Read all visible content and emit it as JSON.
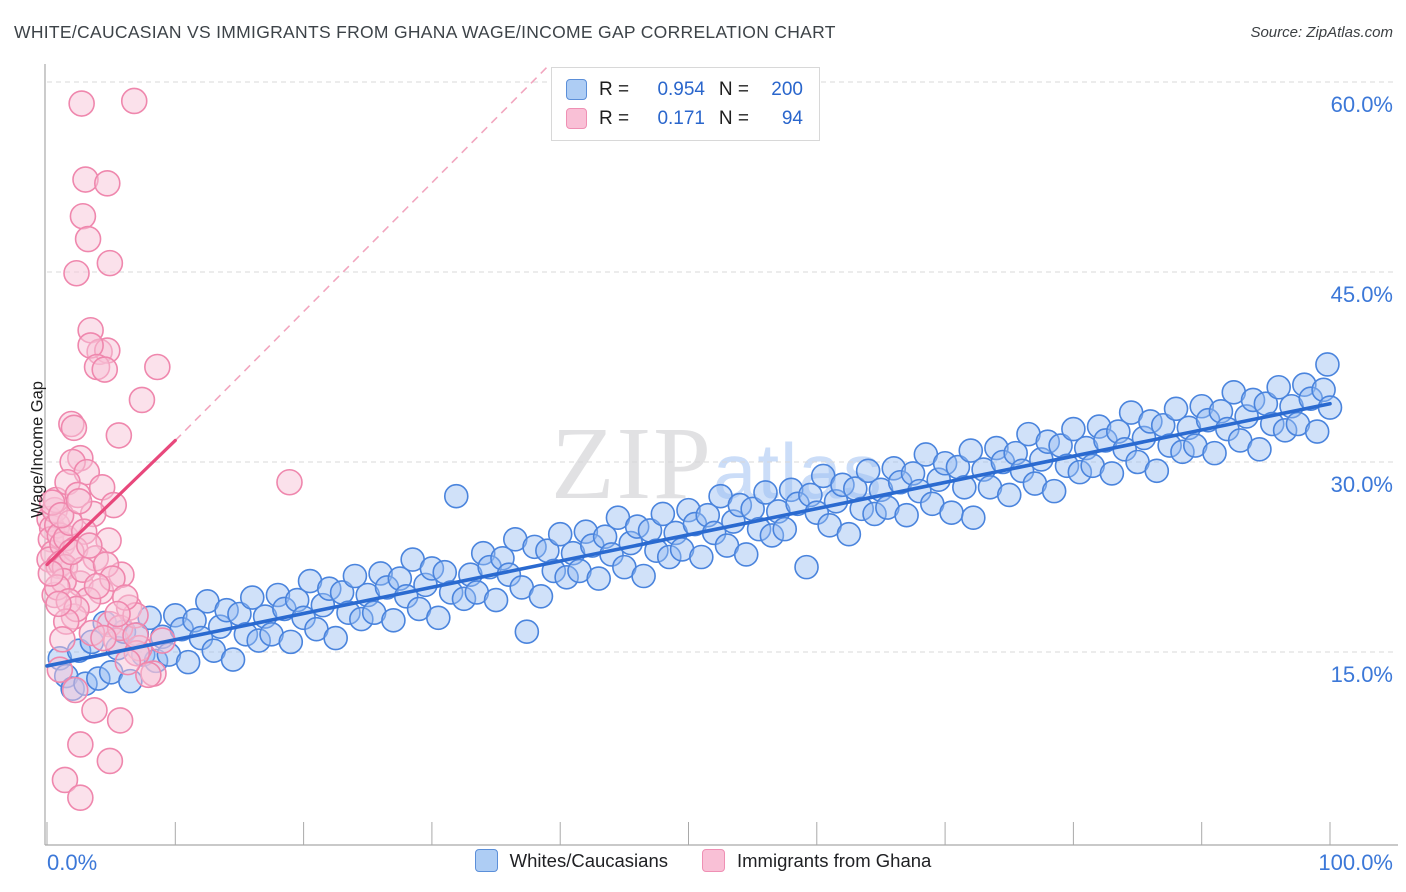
{
  "header": {
    "title": "WHITE/CAUCASIAN VS IMMIGRANTS FROM GHANA WAGE/INCOME GAP CORRELATION CHART",
    "source": "Source: ZipAtlas.com"
  },
  "watermark": {
    "zip": "ZIP",
    "atlas": "atlas"
  },
  "axes": {
    "y_label": "Wage/Income Gap",
    "y_ticks": [
      {
        "value": 60,
        "label": "60.0%"
      },
      {
        "value": 45,
        "label": "45.0%"
      },
      {
        "value": 30,
        "label": "30.0%"
      },
      {
        "value": 15,
        "label": "15.0%"
      }
    ],
    "x_left_label": "0.0%",
    "x_right_label": "100.0%",
    "x_tick_percents": [
      0,
      10,
      20,
      30,
      40,
      50,
      60,
      70,
      80,
      90,
      100
    ]
  },
  "legend_box": {
    "rows": [
      {
        "r_eq": "R =",
        "r_val": "0.954",
        "n_eq": "N =",
        "n_val": "200",
        "swatch_fill": "#aecdf4",
        "swatch_border": "#5b8fd9"
      },
      {
        "r_eq": "R =",
        "r_val": "0.171",
        "n_eq": "N =",
        "n_val": "94",
        "swatch_fill": "#f9c0d6",
        "swatch_border": "#ef90b4"
      }
    ]
  },
  "colors": {
    "blue_stroke": "#4a84dd",
    "blue_fill": "rgba(150,189,242,0.45)",
    "pink_stroke": "#ef87ad",
    "pink_fill": "rgba(247,195,215,0.5)",
    "blue_line": "#2a6ad0",
    "pink_line": "#e8487c",
    "pink_dash": "#f2a6bf",
    "grid": "#d8d8d8",
    "axis": "#a9a9a9",
    "tick_label_blue": "#3c78d8"
  },
  "chart_data": {
    "type": "scatter",
    "title": "WHITE/CAUCASIAN VS IMMIGRANTS FROM GHANA WAGE/INCOME GAP CORRELATION CHART",
    "xlabel": "",
    "ylabel": "Wage/Income Gap",
    "xlim": [
      0,
      100
    ],
    "ylim": [
      0,
      62
    ],
    "grid": "horizontal-dashed",
    "legend_position": "bottom-center",
    "series": [
      {
        "name": "Whites/Caucasians",
        "R": 0.954,
        "N": 200,
        "radius": 11.5,
        "trend": {
          "x1": 0,
          "y1": 13.9,
          "x2": 100,
          "y2": 34.6
        },
        "points": [
          [
            1.0,
            14.5
          ],
          [
            1.5,
            13.1
          ],
          [
            2.0,
            12.1
          ],
          [
            2.5,
            15.1
          ],
          [
            3.0,
            12.5
          ],
          [
            3.5,
            15.8
          ],
          [
            4.0,
            12.9
          ],
          [
            4.5,
            17.3
          ],
          [
            5.0,
            13.4
          ],
          [
            5.5,
            15.3
          ],
          [
            6.0,
            16.6
          ],
          [
            6.5,
            12.7
          ],
          [
            7.0,
            16.4
          ],
          [
            7.5,
            14.8
          ],
          [
            8.0,
            17.7
          ],
          [
            8.5,
            14.3
          ],
          [
            9.0,
            16.2
          ],
          [
            9.5,
            14.8
          ],
          [
            10.0,
            17.9
          ],
          [
            10.5,
            16.8
          ],
          [
            11.0,
            14.2
          ],
          [
            11.5,
            17.5
          ],
          [
            12.0,
            16.1
          ],
          [
            12.5,
            19.0
          ],
          [
            13.0,
            15.1
          ],
          [
            13.5,
            17.0
          ],
          [
            14.0,
            18.3
          ],
          [
            14.5,
            14.4
          ],
          [
            15.0,
            18.0
          ],
          [
            15.5,
            16.4
          ],
          [
            16.0,
            19.3
          ],
          [
            16.5,
            15.9
          ],
          [
            17.0,
            17.8
          ],
          [
            17.5,
            16.4
          ],
          [
            18.0,
            19.5
          ],
          [
            18.5,
            18.4
          ],
          [
            19.0,
            15.8
          ],
          [
            19.5,
            19.1
          ],
          [
            20.0,
            17.7
          ],
          [
            20.5,
            20.6
          ],
          [
            21.0,
            16.8
          ],
          [
            21.5,
            18.7
          ],
          [
            22.0,
            20.0
          ],
          [
            22.5,
            16.1
          ],
          [
            23.0,
            19.7
          ],
          [
            23.5,
            18.1
          ],
          [
            24.0,
            21.0
          ],
          [
            24.5,
            17.6
          ],
          [
            25.0,
            19.5
          ],
          [
            25.5,
            18.1
          ],
          [
            26.0,
            21.2
          ],
          [
            26.5,
            20.1
          ],
          [
            27.0,
            17.5
          ],
          [
            27.5,
            20.8
          ],
          [
            28.0,
            19.4
          ],
          [
            28.5,
            22.3
          ],
          [
            29.0,
            18.4
          ],
          [
            29.5,
            20.3
          ],
          [
            30.0,
            21.6
          ],
          [
            30.5,
            17.7
          ],
          [
            31.0,
            21.3
          ],
          [
            31.5,
            19.7
          ],
          [
            31.9,
            27.3
          ],
          [
            32.5,
            19.2
          ],
          [
            33.0,
            21.1
          ],
          [
            33.5,
            19.7
          ],
          [
            34.0,
            22.8
          ],
          [
            34.5,
            21.7
          ],
          [
            35.0,
            19.1
          ],
          [
            35.5,
            22.4
          ],
          [
            36.0,
            21.1
          ],
          [
            36.5,
            23.9
          ],
          [
            37.0,
            20.1
          ],
          [
            37.4,
            16.6
          ],
          [
            38.0,
            23.3
          ],
          [
            38.5,
            19.4
          ],
          [
            39.0,
            23.0
          ],
          [
            39.5,
            21.4
          ],
          [
            40.0,
            24.3
          ],
          [
            40.5,
            20.9
          ],
          [
            41.0,
            22.8
          ],
          [
            41.5,
            21.4
          ],
          [
            42.0,
            24.5
          ],
          [
            42.5,
            23.4
          ],
          [
            43.0,
            20.8
          ],
          [
            43.5,
            24.1
          ],
          [
            44.0,
            22.7
          ],
          [
            44.5,
            25.6
          ],
          [
            45.0,
            21.7
          ],
          [
            45.5,
            23.6
          ],
          [
            46.0,
            24.9
          ],
          [
            46.5,
            21.0
          ],
          [
            47.0,
            24.6
          ],
          [
            47.5,
            23.0
          ],
          [
            48.0,
            25.9
          ],
          [
            48.5,
            22.5
          ],
          [
            49.0,
            24.4
          ],
          [
            49.5,
            23.1
          ],
          [
            50.0,
            26.2
          ],
          [
            50.5,
            25.1
          ],
          [
            51.0,
            22.5
          ],
          [
            51.5,
            25.8
          ],
          [
            52.0,
            24.4
          ],
          [
            52.5,
            27.3
          ],
          [
            53.0,
            23.4
          ],
          [
            53.5,
            25.3
          ],
          [
            54.0,
            26.6
          ],
          [
            54.5,
            22.7
          ],
          [
            55.0,
            26.3
          ],
          [
            55.5,
            24.7
          ],
          [
            56.0,
            27.6
          ],
          [
            56.5,
            24.2
          ],
          [
            57.0,
            26.1
          ],
          [
            57.5,
            24.7
          ],
          [
            58.0,
            27.8
          ],
          [
            58.5,
            26.7
          ],
          [
            59.2,
            21.7
          ],
          [
            59.5,
            27.4
          ],
          [
            60.0,
            26.0
          ],
          [
            60.5,
            28.9
          ],
          [
            61.0,
            25.0
          ],
          [
            61.5,
            26.9
          ],
          [
            62.0,
            28.2
          ],
          [
            62.5,
            24.3
          ],
          [
            63.0,
            27.9
          ],
          [
            63.5,
            26.3
          ],
          [
            64.0,
            29.3
          ],
          [
            64.5,
            25.9
          ],
          [
            65.0,
            27.8
          ],
          [
            65.5,
            26.4
          ],
          [
            66.0,
            29.5
          ],
          [
            66.5,
            28.4
          ],
          [
            67.0,
            25.8
          ],
          [
            67.5,
            29.1
          ],
          [
            68.0,
            27.7
          ],
          [
            68.5,
            30.6
          ],
          [
            69.0,
            26.7
          ],
          [
            69.5,
            28.6
          ],
          [
            70.0,
            29.9
          ],
          [
            70.5,
            26.0
          ],
          [
            71.0,
            29.6
          ],
          [
            71.5,
            28.0
          ],
          [
            72.0,
            30.9
          ],
          [
            72.2,
            25.6
          ],
          [
            73.0,
            29.4
          ],
          [
            73.5,
            28.0
          ],
          [
            74.0,
            31.1
          ],
          [
            74.5,
            30.0
          ],
          [
            75.0,
            27.4
          ],
          [
            75.5,
            30.7
          ],
          [
            76.0,
            29.3
          ],
          [
            76.5,
            32.2
          ],
          [
            77.0,
            28.3
          ],
          [
            77.5,
            30.2
          ],
          [
            78.0,
            31.6
          ],
          [
            78.5,
            27.7
          ],
          [
            79.0,
            31.3
          ],
          [
            79.5,
            29.7
          ],
          [
            80.0,
            32.6
          ],
          [
            80.5,
            29.2
          ],
          [
            81.0,
            31.1
          ],
          [
            81.5,
            29.7
          ],
          [
            82.0,
            32.8
          ],
          [
            82.5,
            31.7
          ],
          [
            83.0,
            29.1
          ],
          [
            83.5,
            32.4
          ],
          [
            84.0,
            31.0
          ],
          [
            84.5,
            33.9
          ],
          [
            85.0,
            30.0
          ],
          [
            85.5,
            31.9
          ],
          [
            86.0,
            33.2
          ],
          [
            86.5,
            29.3
          ],
          [
            87.0,
            32.9
          ],
          [
            87.5,
            31.3
          ],
          [
            88.0,
            34.2
          ],
          [
            88.5,
            30.8
          ],
          [
            89.0,
            32.7
          ],
          [
            89.5,
            31.3
          ],
          [
            90.0,
            34.4
          ],
          [
            90.5,
            33.3
          ],
          [
            91.0,
            30.7
          ],
          [
            91.5,
            34.0
          ],
          [
            92.0,
            32.6
          ],
          [
            92.5,
            35.5
          ],
          [
            93.0,
            31.7
          ],
          [
            93.5,
            33.6
          ],
          [
            94.0,
            34.9
          ],
          [
            94.5,
            31.0
          ],
          [
            95.0,
            34.6
          ],
          [
            95.5,
            33.0
          ],
          [
            96.0,
            35.9
          ],
          [
            96.5,
            32.5
          ],
          [
            97.0,
            34.4
          ],
          [
            97.5,
            33.0
          ],
          [
            98.0,
            36.1
          ],
          [
            98.5,
            35.0
          ],
          [
            99.0,
            32.4
          ],
          [
            99.5,
            35.7
          ],
          [
            100.0,
            34.3
          ],
          [
            99.8,
            37.7
          ]
        ]
      },
      {
        "name": "Immigrants from Ghana",
        "R": 0.171,
        "N": 94,
        "radius": 12.5,
        "trend": {
          "x1": 0,
          "y1": 21.9,
          "x2": 10,
          "y2": 31.7
        },
        "trend_dashed": {
          "x1": 10,
          "y1": 31.7,
          "x2": 39,
          "y2": 61.2
        },
        "points": [
          [
            2.7,
            58.3
          ],
          [
            6.8,
            58.5
          ],
          [
            3.0,
            52.3
          ],
          [
            4.7,
            52.0
          ],
          [
            2.8,
            49.4
          ],
          [
            3.2,
            47.6
          ],
          [
            4.9,
            45.7
          ],
          [
            2.3,
            44.9
          ],
          [
            3.4,
            40.4
          ],
          [
            4.1,
            38.7
          ],
          [
            4.7,
            38.8
          ],
          [
            8.6,
            37.5
          ],
          [
            3.4,
            39.2
          ],
          [
            3.9,
            37.5
          ],
          [
            4.5,
            37.3
          ],
          [
            7.4,
            34.9
          ],
          [
            1.9,
            33.0
          ],
          [
            2.1,
            32.7
          ],
          [
            5.6,
            32.1
          ],
          [
            2.6,
            30.3
          ],
          [
            0.2,
            25.5
          ],
          [
            0.4,
            24.8
          ],
          [
            0.6,
            26.2
          ],
          [
            0.3,
            23.9
          ],
          [
            0.8,
            25.0
          ],
          [
            0.5,
            22.8
          ],
          [
            1.0,
            24.2
          ],
          [
            0.7,
            27.0
          ],
          [
            0.2,
            22.3
          ],
          [
            1.2,
            23.5
          ],
          [
            0.9,
            21.8
          ],
          [
            0.4,
            26.8
          ],
          [
            1.5,
            24.0
          ],
          [
            1.1,
            22.0
          ],
          [
            2.0,
            30.0
          ],
          [
            3.1,
            29.2
          ],
          [
            1.6,
            28.4
          ],
          [
            4.3,
            28.0
          ],
          [
            2.4,
            27.4
          ],
          [
            5.2,
            26.6
          ],
          [
            3.6,
            25.9
          ],
          [
            1.8,
            25.2
          ],
          [
            2.9,
            24.5
          ],
          [
            4.8,
            23.8
          ],
          [
            2.2,
            23.1
          ],
          [
            3.8,
            22.4
          ],
          [
            1.4,
            21.7
          ],
          [
            5.8,
            21.1
          ],
          [
            2.6,
            20.4
          ],
          [
            4.2,
            19.8
          ],
          [
            3.2,
            19.1
          ],
          [
            6.4,
            18.5
          ],
          [
            2.1,
            17.8
          ],
          [
            4.9,
            17.2
          ],
          [
            3.5,
            16.5
          ],
          [
            5.4,
            15.9
          ],
          [
            7.2,
            15.3
          ],
          [
            1.0,
            13.6
          ],
          [
            2.2,
            12.0
          ],
          [
            3.7,
            10.4
          ],
          [
            5.7,
            9.6
          ],
          [
            2.6,
            7.7
          ],
          [
            4.9,
            6.4
          ],
          [
            1.4,
            4.9
          ],
          [
            2.6,
            3.5
          ],
          [
            8.3,
            13.3
          ],
          [
            7.0,
            14.9
          ],
          [
            7.9,
            13.2
          ],
          [
            9.0,
            15.9
          ],
          [
            5.7,
            16.9
          ],
          [
            6.9,
            17.9
          ],
          [
            18.9,
            28.4
          ],
          [
            0.6,
            19.5
          ],
          [
            1.3,
            20.6
          ],
          [
            2.8,
            21.5
          ],
          [
            1.9,
            22.9
          ],
          [
            0.8,
            20.1
          ],
          [
            3.3,
            23.4
          ],
          [
            1.1,
            25.8
          ],
          [
            2.5,
            26.9
          ],
          [
            0.3,
            21.2
          ],
          [
            1.7,
            19.0
          ],
          [
            4.6,
            21.9
          ],
          [
            5.1,
            20.8
          ],
          [
            3.9,
            20.2
          ],
          [
            2.3,
            18.4
          ],
          [
            1.5,
            17.4
          ],
          [
            0.9,
            18.8
          ],
          [
            6.1,
            19.3
          ],
          [
            5.5,
            18.0
          ],
          [
            4.4,
            16.1
          ],
          [
            6.9,
            16.3
          ],
          [
            6.3,
            14.2
          ],
          [
            1.2,
            16.0
          ]
        ]
      }
    ]
  }
}
